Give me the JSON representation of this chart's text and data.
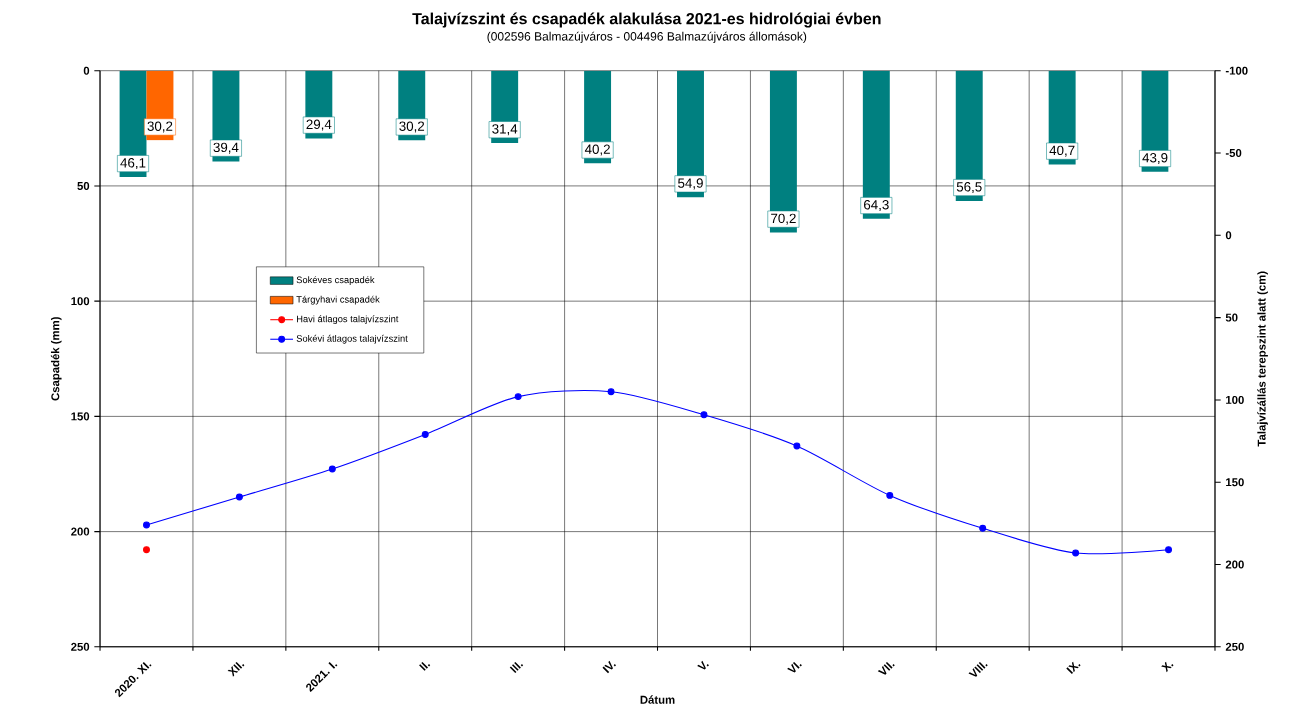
{
  "chart_data": {
    "type": "bar",
    "title": "Talajvízszint és csapadék alakulása 2021-es hidrológiai évben",
    "subtitle": "(002596  Balmazújváros  - 004496  Balmazújváros  állomások)",
    "xlabel": "Dátum",
    "ylabel": "Csapadék (mm)",
    "y2label": "Talajvízállás terepszint alatt (cm)",
    "categories": [
      "2020. XI.",
      "XII.",
      "2021. I.",
      "II.",
      "III.",
      "IV.",
      "V.",
      "VI.",
      "VII.",
      "VIII.",
      "IX.",
      "X."
    ],
    "series": [
      {
        "name": "Sokéves csapadék",
        "color": "#008080",
        "values": [
          46.1,
          39.4,
          29.4,
          30.2,
          31.4,
          40.2,
          54.9,
          70.2,
          64.3,
          56.5,
          40.7,
          43.9
        ],
        "value_labels": [
          "46,1",
          "39,4",
          "29,4",
          "30,2",
          "31,4",
          "40,2",
          "54,9",
          "70,2",
          "64,3",
          "56,5",
          "40,7",
          "43,9"
        ]
      },
      {
        "name": "Tárgyhavi csapadék",
        "color": "#ff6600",
        "values": [
          30.2,
          null,
          null,
          null,
          null,
          null,
          null,
          null,
          null,
          null,
          null,
          null
        ],
        "value_labels": [
          "30,2",
          null,
          null,
          null,
          null,
          null,
          null,
          null,
          null,
          null,
          null,
          null
        ]
      },
      {
        "name": "Havi átlagos talajvízszint",
        "type": "line",
        "axis": "y2",
        "color": "#ff0000",
        "values": [
          191,
          null,
          null,
          null,
          null,
          null,
          null,
          null,
          null,
          null,
          null,
          null
        ]
      },
      {
        "name": "Sokévi átlagos talajvízszint",
        "type": "line",
        "axis": "y2",
        "color": "#0000ff",
        "values": [
          176,
          159,
          142,
          121,
          98,
          95,
          109,
          128,
          158,
          178,
          193,
          191
        ]
      }
    ],
    "ylim": [
      250,
      0
    ],
    "yticks": [
      0,
      50,
      100,
      150,
      200,
      250
    ],
    "y2lim": [
      250,
      -100
    ],
    "y2ticks": [
      -100,
      -50,
      0,
      50,
      100,
      150,
      200,
      250
    ],
    "grid": true,
    "legend": "left",
    "marker": "circle"
  }
}
